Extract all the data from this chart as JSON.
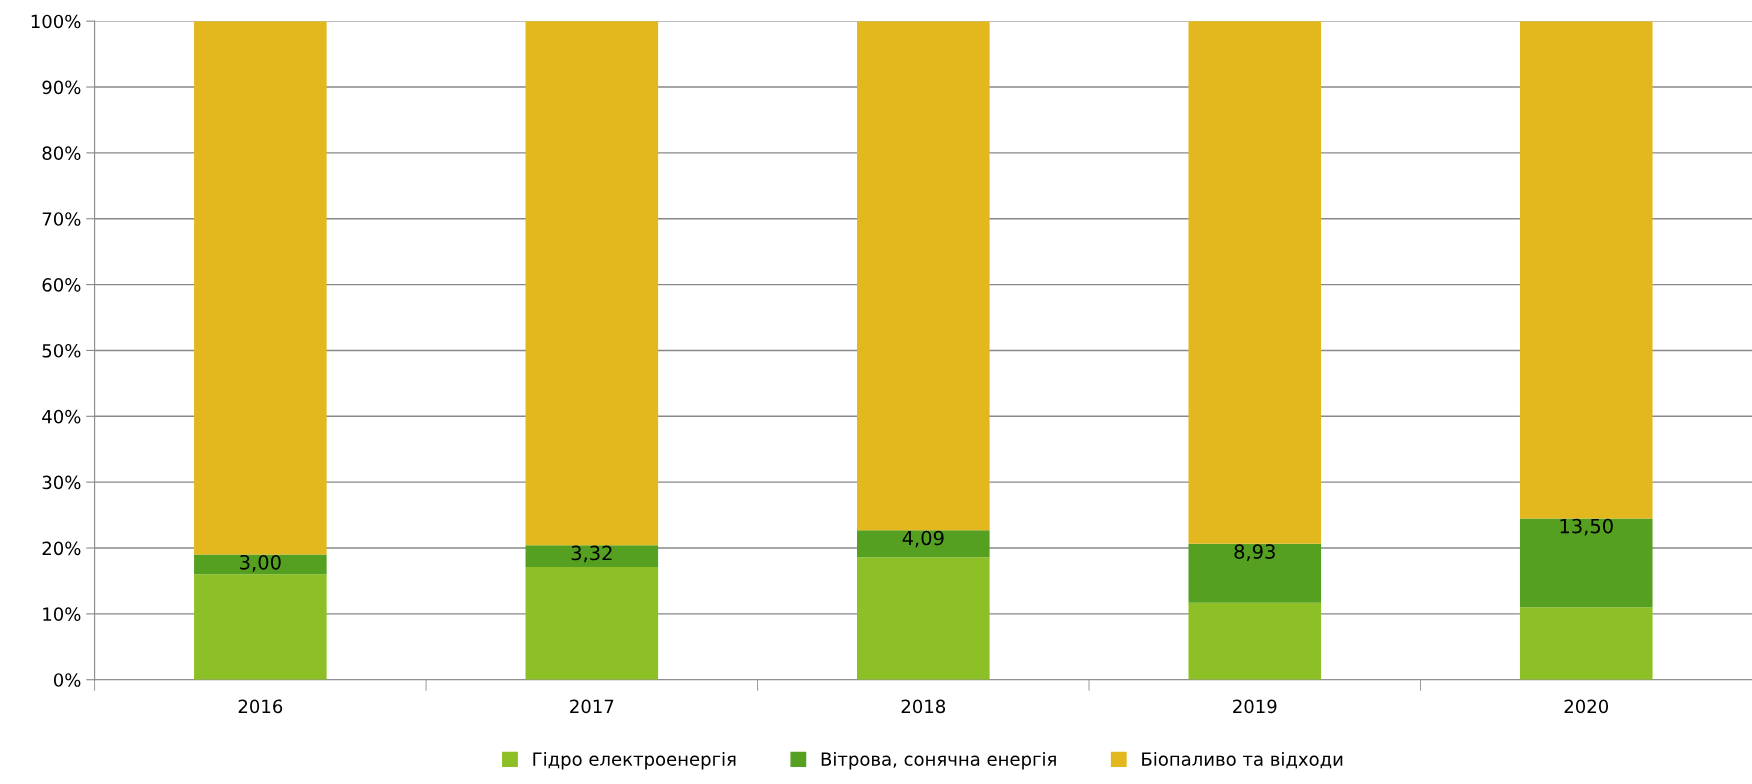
{
  "chart_data": {
    "type": "bar",
    "stacked": true,
    "categories": [
      "2016",
      "2017",
      "2018",
      "2019",
      "2020"
    ],
    "series": [
      {
        "name": "Гідро електроенергія",
        "color": "#8dc026",
        "values": [
          16.0,
          17.1,
          18.6,
          11.7,
          11.0
        ]
      },
      {
        "name": "Вітрова, сонячна енергія",
        "color": "#55a021",
        "values": [
          3.0,
          3.32,
          4.09,
          8.93,
          13.5
        ],
        "value_labels": [
          "3,00",
          "3,32",
          "4,09",
          "8,93",
          "13,50"
        ]
      },
      {
        "name": "Біопаливо та відходи",
        "color": "#e3b81f",
        "values": [
          81.0,
          79.6,
          77.3,
          79.4,
          75.5
        ]
      }
    ],
    "ylim": [
      0,
      100
    ],
    "yticks": [
      {
        "value": 0,
        "label": "0%"
      },
      {
        "value": 10,
        "label": "10%"
      },
      {
        "value": 20,
        "label": "20%"
      },
      {
        "value": 30,
        "label": "30%"
      },
      {
        "value": 40,
        "label": "40%"
      },
      {
        "value": 50,
        "label": "50%"
      },
      {
        "value": 60,
        "label": "60%"
      },
      {
        "value": 70,
        "label": "70%"
      },
      {
        "value": 80,
        "label": "80%"
      },
      {
        "value": 90,
        "label": "90%"
      },
      {
        "value": 100,
        "label": "100%"
      }
    ],
    "grid": "y",
    "legend": "bottom"
  }
}
